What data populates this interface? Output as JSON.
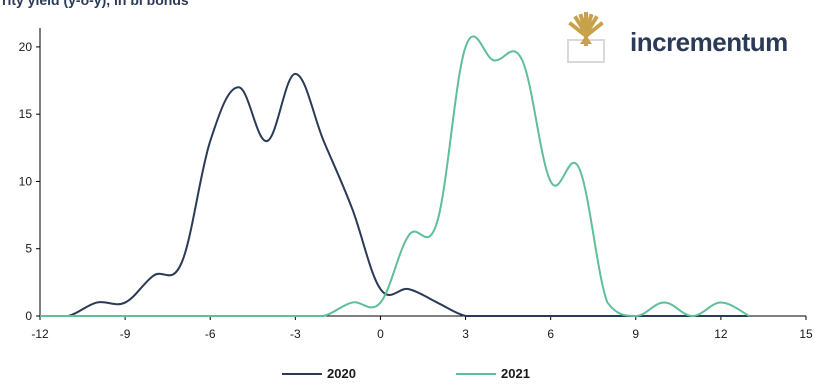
{
  "header": {
    "title_fragment": "rity yield (y-o-y), in bl bonds"
  },
  "logo": {
    "text": "incrementum",
    "icon": "tree-icon",
    "color_gold": "#c8a24a",
    "color_text": "#2b3a57"
  },
  "chart_data": {
    "type": "line",
    "title": "",
    "xlabel": "",
    "ylabel": "",
    "xlim": [
      -12,
      15
    ],
    "ylim": [
      0,
      22
    ],
    "x_ticks": [
      -12,
      -9,
      -6,
      -3,
      0,
      3,
      6,
      9,
      12,
      15
    ],
    "x_tick_labels": [
      "-12",
      "-9",
      "-6",
      "-3",
      "0",
      "3",
      "6",
      "9",
      "12",
      "15"
    ],
    "y_ticks": [
      0,
      5,
      10,
      15,
      20
    ],
    "y_tick_labels": [
      "0",
      "5",
      "10",
      "15",
      "20"
    ],
    "grid": false,
    "legend_position": "bottom",
    "series": [
      {
        "name": "2020",
        "color": "#2b3a57",
        "x": [
          -12,
          -11,
          -10,
          -9,
          -8,
          -7,
          -6,
          -5,
          -4,
          -3,
          -2,
          -1,
          0,
          1,
          2,
          3,
          4,
          5,
          6,
          7,
          8,
          9,
          10,
          11,
          12,
          13
        ],
        "values": [
          0,
          0,
          1,
          1,
          3,
          4,
          13,
          17,
          13,
          18,
          13,
          8,
          2,
          2,
          1,
          0,
          0,
          0,
          0,
          0,
          0,
          0,
          0,
          0,
          0,
          0
        ]
      },
      {
        "name": "2021",
        "color": "#5fbf96",
        "x": [
          -12,
          -11,
          -10,
          -9,
          -8,
          -7,
          -6,
          -5,
          -4,
          -3,
          -2,
          -1,
          0,
          1,
          2,
          3,
          4,
          5,
          6,
          7,
          8,
          9,
          10,
          11,
          12,
          13
        ],
        "values": [
          0,
          0,
          0,
          0,
          0,
          0,
          0,
          0,
          0,
          0,
          0,
          1,
          1,
          6,
          7,
          20,
          19,
          19,
          10,
          11,
          1,
          0,
          1,
          0,
          1,
          0
        ]
      }
    ]
  }
}
